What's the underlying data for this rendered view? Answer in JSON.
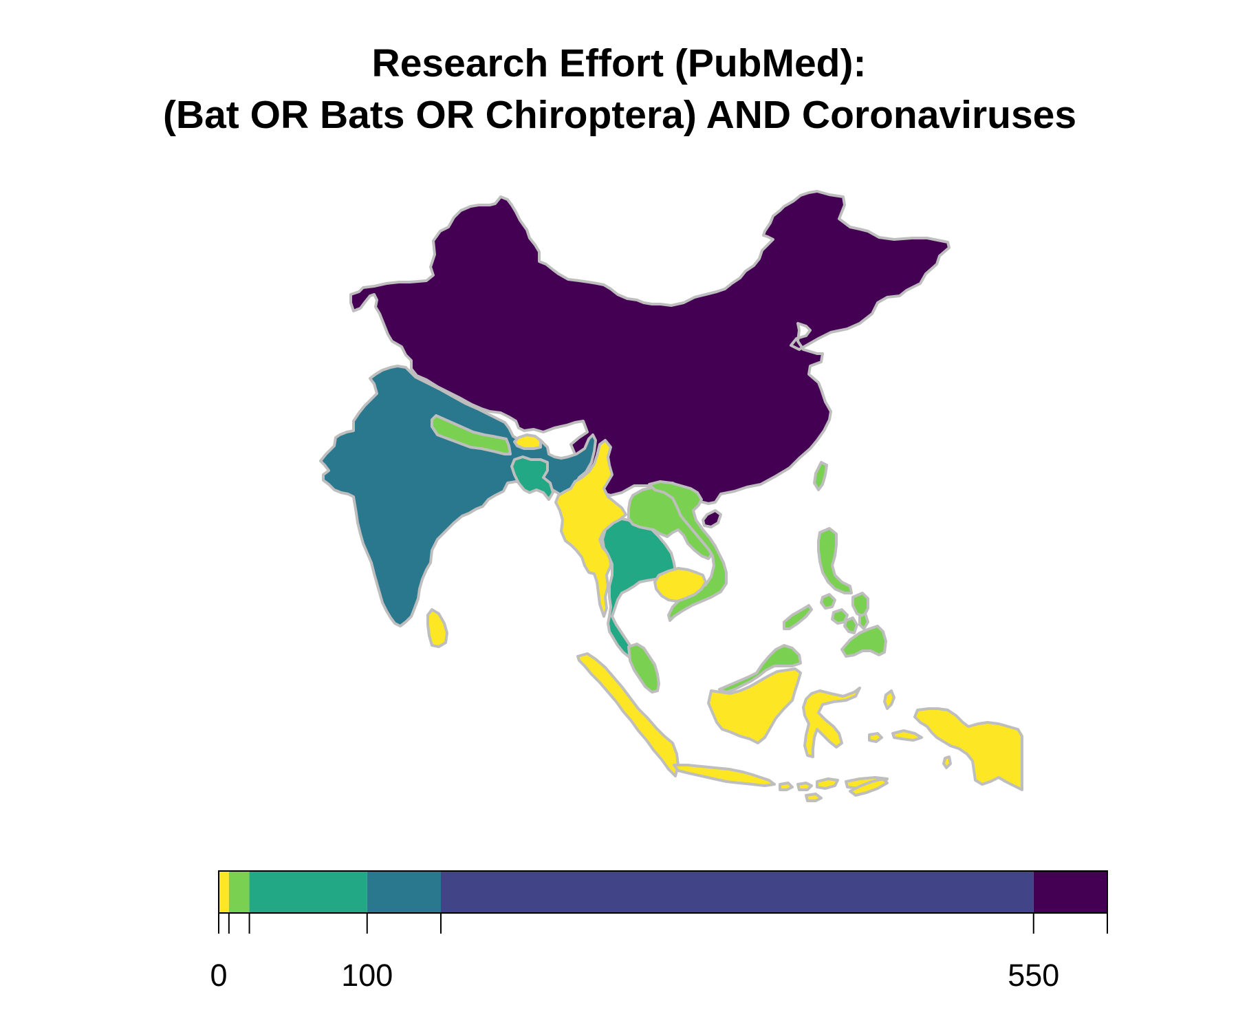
{
  "title": {
    "line1": "Research Effort (PubMed):",
    "line2": "(Bat OR Bats OR Chiroptera) AND Coronaviruses"
  },
  "palette": {
    "c1": "#fde725",
    "c2": "#7ad151",
    "c3": "#22a884",
    "c4": "#2a788e",
    "c5": "#414487",
    "c6": "#440154",
    "border": "#bebebe"
  },
  "legend": {
    "breaks": [
      0,
      5,
      17,
      100,
      150,
      550,
      600
    ],
    "labels": [
      "0",
      "100",
      "550"
    ],
    "label_values": [
      0,
      100,
      550
    ],
    "bins": [
      {
        "from": 0,
        "to": 5,
        "color": "#fde725"
      },
      {
        "from": 5,
        "to": 17,
        "color": "#7ad151"
      },
      {
        "from": 17,
        "to": 100,
        "color": "#22a884"
      },
      {
        "from": 100,
        "to": 150,
        "color": "#2a788e"
      },
      {
        "from": 150,
        "to": 550,
        "color": "#414487"
      },
      {
        "from": 550,
        "to": 600,
        "color": "#440154"
      }
    ]
  },
  "regions": [
    {
      "name": "china",
      "class": "c6"
    },
    {
      "name": "india",
      "class": "c4"
    },
    {
      "name": "sri-lanka",
      "class": "c1"
    },
    {
      "name": "nepal",
      "class": "c2"
    },
    {
      "name": "bhutan",
      "class": "c1"
    },
    {
      "name": "bangladesh",
      "class": "c3"
    },
    {
      "name": "myanmar",
      "class": "c1"
    },
    {
      "name": "thailand",
      "class": "c3"
    },
    {
      "name": "laos",
      "class": "c2"
    },
    {
      "name": "vietnam",
      "class": "c2"
    },
    {
      "name": "cambodia",
      "class": "c1"
    },
    {
      "name": "malaysia",
      "class": "c2"
    },
    {
      "name": "indonesia",
      "class": "c1"
    },
    {
      "name": "philippines",
      "class": "c2"
    },
    {
      "name": "taiwan",
      "class": "c2"
    }
  ]
}
